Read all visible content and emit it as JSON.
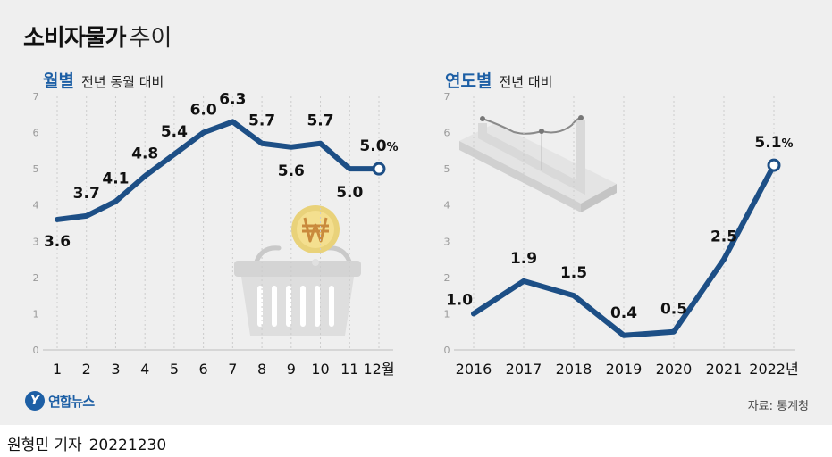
{
  "title": "소비자물가",
  "title_suffix": "추이",
  "logo": {
    "mark": "Y",
    "text": "연합뉴스"
  },
  "source": "자료: 통계청",
  "byline": {
    "reporter": "원형민 기자",
    "date": "20221230"
  },
  "colors": {
    "line": "#1d4f86",
    "accent": "#1d5fa5",
    "grid": "#cccccc",
    "background": "#efefef"
  },
  "chart_data": [
    {
      "type": "line",
      "title": "월별",
      "subtitle": "전년 동월 대비",
      "categories": [
        "1",
        "2",
        "3",
        "4",
        "5",
        "6",
        "7",
        "8",
        "9",
        "10",
        "11",
        "12월"
      ],
      "values": [
        3.6,
        3.7,
        4.1,
        4.8,
        5.4,
        6.0,
        6.3,
        5.7,
        5.6,
        5.7,
        5.0,
        5.0
      ],
      "labels": [
        "3.6",
        "3.7",
        "4.1",
        "4.8",
        "5.4",
        "6.0",
        "6.3",
        "5.7",
        "5.6",
        "5.7",
        "5.0",
        "5.0"
      ],
      "last_label_suffix": "%",
      "yticks": [
        "0",
        "1",
        "2",
        "3",
        "4",
        "5",
        "6",
        "7"
      ],
      "ylim": [
        0,
        7
      ],
      "grid": true
    },
    {
      "type": "line",
      "title": "연도별",
      "subtitle": "전년 대비",
      "categories": [
        "2016",
        "2017",
        "2018",
        "2019",
        "2020",
        "2021",
        "2022년"
      ],
      "values": [
        1.0,
        1.9,
        1.5,
        0.4,
        0.5,
        2.5,
        5.1
      ],
      "labels": [
        "1.0",
        "1.9",
        "1.5",
        "0.4",
        "0.5",
        "2.5",
        "5.1"
      ],
      "last_label_suffix": "%",
      "yticks": [
        "0",
        "1",
        "2",
        "3",
        "4",
        "5",
        "6",
        "7"
      ],
      "ylim": [
        0,
        7
      ],
      "grid": true
    }
  ]
}
